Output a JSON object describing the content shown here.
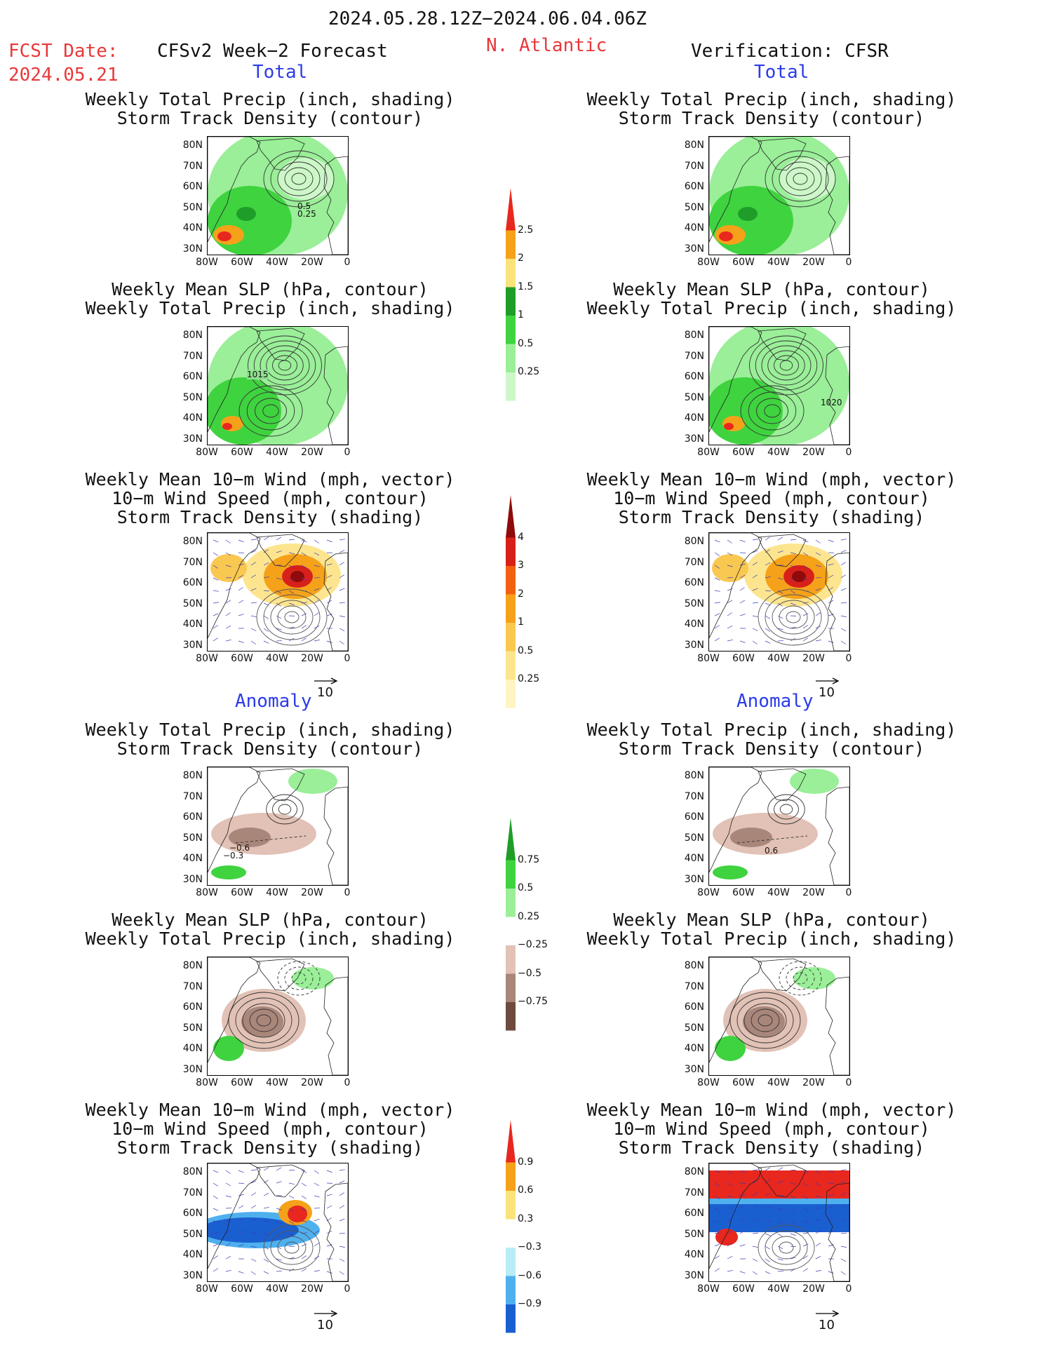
{
  "header": {
    "date_range": "2024.05.28.12Z−2024.06.04.06Z",
    "fcst_label": "FCST Date:",
    "fcst_date": "2024.05.21",
    "model_title": "CFSv2 Week−2 Forecast",
    "region": "N. Atlantic",
    "verification": "Verification: CFSR"
  },
  "sections": {
    "total": "Total",
    "anomaly": "Anomaly"
  },
  "panel_titles": {
    "precip_storm": [
      "Weekly Total Precip (inch, shading)",
      "Storm Track Density (contour)"
    ],
    "slp_precip": [
      "Weekly Mean SLP (hPa, contour)",
      "Weekly Total Precip (inch, shading)"
    ],
    "wind_storm": [
      "Weekly Mean 10−m Wind (mph, vector)",
      "10−m Wind Speed (mph, contour)",
      "Storm Track Density (shading)"
    ]
  },
  "axes": {
    "lat_ticks": [
      "80N",
      "70N",
      "60N",
      "50N",
      "40N",
      "30N"
    ],
    "lon_ticks": [
      "80W",
      "60W",
      "40W",
      "20W",
      "0"
    ]
  },
  "vector_ref": "10",
  "contour_labels": {
    "fc_total_precip": [
      "0.5",
      "0.25"
    ],
    "fc_total_slp": "1015",
    "obs_total_slp": "1020",
    "fc_anom_precip": [
      "−0.6",
      "−0.3"
    ],
    "obs_anom_precip": "0.6"
  },
  "colorbars": {
    "total_precip": {
      "labels": [
        "2.5",
        "2",
        "1.5",
        "1",
        "0.5",
        "0.25"
      ],
      "colors": [
        "#e8271e",
        "#f5a21a",
        "#fae37a",
        "#1e9e28",
        "#3fd33f",
        "#9aef98",
        "#cdf7c9"
      ]
    },
    "total_storm": {
      "labels": [
        "4",
        "3",
        "2",
        "1",
        "0.5",
        "0.25"
      ],
      "colors": [
        "#8f0a0a",
        "#d8201a",
        "#f36010",
        "#f5a21a",
        "#f9c850",
        "#fde58f",
        "#fff4c2"
      ]
    },
    "anom_precip": {
      "labels": [
        "0.75",
        "0.5",
        "0.25",
        "−0.25",
        "−0.5",
        "−0.75"
      ],
      "colors": [
        "#1e9e28",
        "#3fd33f",
        "#9aef98",
        "#ffffff",
        "#e2c2b6",
        "#a9867a",
        "#6f4a3f"
      ]
    },
    "anom_storm": {
      "labels": [
        "0.9",
        "0.6",
        "0.3",
        "−0.3",
        "−0.6",
        "−0.9"
      ],
      "colors": [
        "#e8271e",
        "#f5a21a",
        "#fae37a",
        "#ffffff",
        "#b8ecf6",
        "#4fb0ee",
        "#1a5fd0"
      ]
    }
  }
}
